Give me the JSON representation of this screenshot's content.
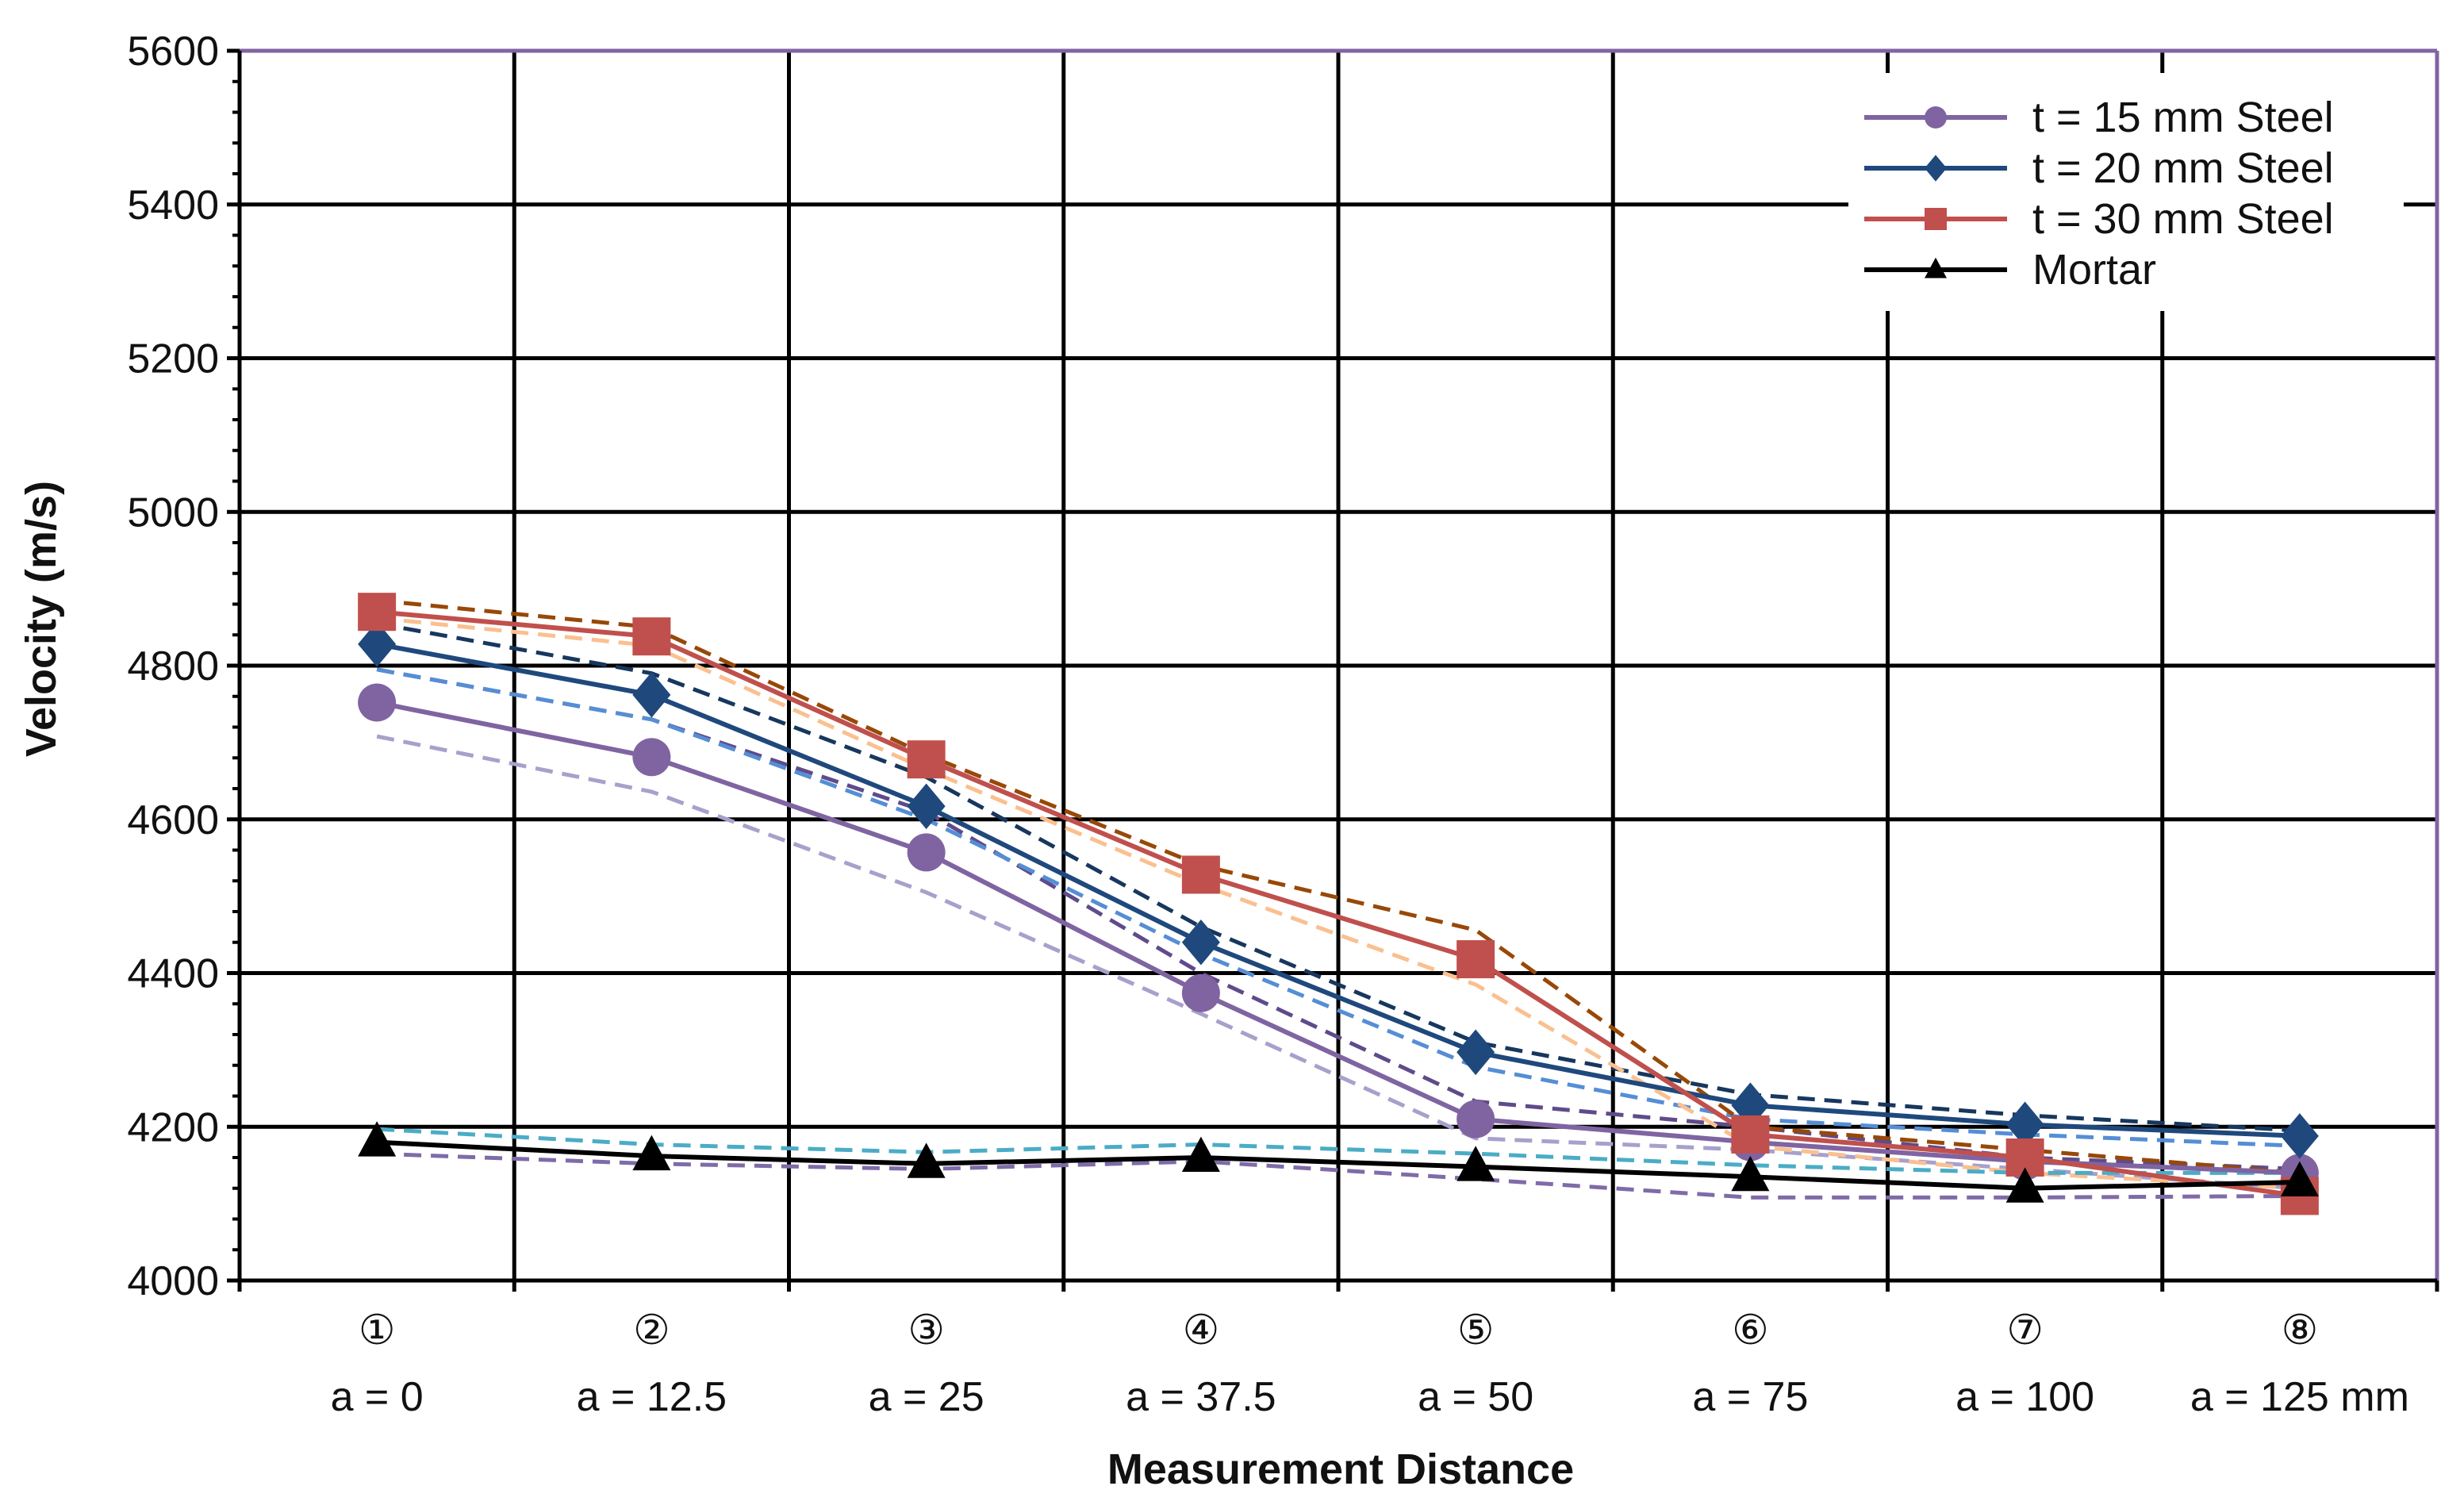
{
  "chart_data": {
    "type": "line",
    "title": "",
    "xlabel": "Measurement Distance",
    "ylabel": "Velocity (m/s)",
    "ylim": [
      4000,
      5600
    ],
    "yticks": [
      4000,
      4200,
      4400,
      4600,
      4800,
      5000,
      5200,
      5400,
      5600
    ],
    "grid": true,
    "legend_position": "top-right",
    "categories": [
      {
        "num": "①",
        "label": "a = 0"
      },
      {
        "num": "②",
        "label": "a = 12.5"
      },
      {
        "num": "③",
        "label": "a = 25"
      },
      {
        "num": "④",
        "label": "a = 37.5"
      },
      {
        "num": "⑤",
        "label": "a = 50"
      },
      {
        "num": "⑥",
        "label": "a = 75"
      },
      {
        "num": "⑦",
        "label": "a = 100"
      },
      {
        "num": "⑧",
        "label": "a = 125 mm"
      }
    ],
    "series": [
      {
        "name": "t = 15 mm Steel",
        "color": "#8064A2",
        "marker": "circle",
        "values": [
          4752,
          4681,
          4557,
          4374,
          4210,
          4180,
          4155,
          4140
        ]
      },
      {
        "name": "t = 20 mm Steel",
        "color": "#1F497D",
        "marker": "diamond",
        "values": [
          4828,
          4762,
          4617,
          4440,
          4297,
          4228,
          4203,
          4188
        ]
      },
      {
        "name": "t = 30 mm Steel",
        "color": "#C0504D",
        "marker": "square",
        "values": [
          4870,
          4838,
          4678,
          4528,
          4418,
          4190,
          4160,
          4110
        ]
      },
      {
        "name": "Mortar",
        "color": "#000000",
        "marker": "triangle",
        "values": [
          4180,
          4162,
          4152,
          4160,
          4148,
          4135,
          4120,
          4128
        ]
      }
    ],
    "reference_lines": [
      {
        "color": "#A8A0CC",
        "values": [
          4708,
          4636,
          4505,
          4347,
          4185,
          4170,
          4145,
          4120
        ]
      },
      {
        "color": "#5F4B8B",
        "values": [
          4795,
          4730,
          4610,
          4400,
          4233,
          4200,
          4160,
          4145
        ]
      },
      {
        "color": "#558ED5",
        "values": [
          4795,
          4730,
          4600,
          4425,
          4278,
          4210,
          4190,
          4175
        ]
      },
      {
        "color": "#17375E",
        "values": [
          4855,
          4790,
          4655,
          4460,
          4310,
          4242,
          4215,
          4195
        ]
      },
      {
        "color": "#FAC090",
        "values": [
          4862,
          4826,
          4665,
          4515,
          4385,
          4175,
          4140,
          4120
        ]
      },
      {
        "color": "#984807",
        "values": [
          4885,
          4850,
          4684,
          4540,
          4456,
          4200,
          4170,
          4140
        ]
      },
      {
        "color": "#4BACC6",
        "values": [
          4197,
          4177,
          4167,
          4177,
          4165,
          4150,
          4140,
          4140
        ]
      },
      {
        "color": "#7F6BA8",
        "values": [
          4165,
          4152,
          4145,
          4155,
          4132,
          4108,
          4108,
          4110
        ]
      }
    ]
  }
}
